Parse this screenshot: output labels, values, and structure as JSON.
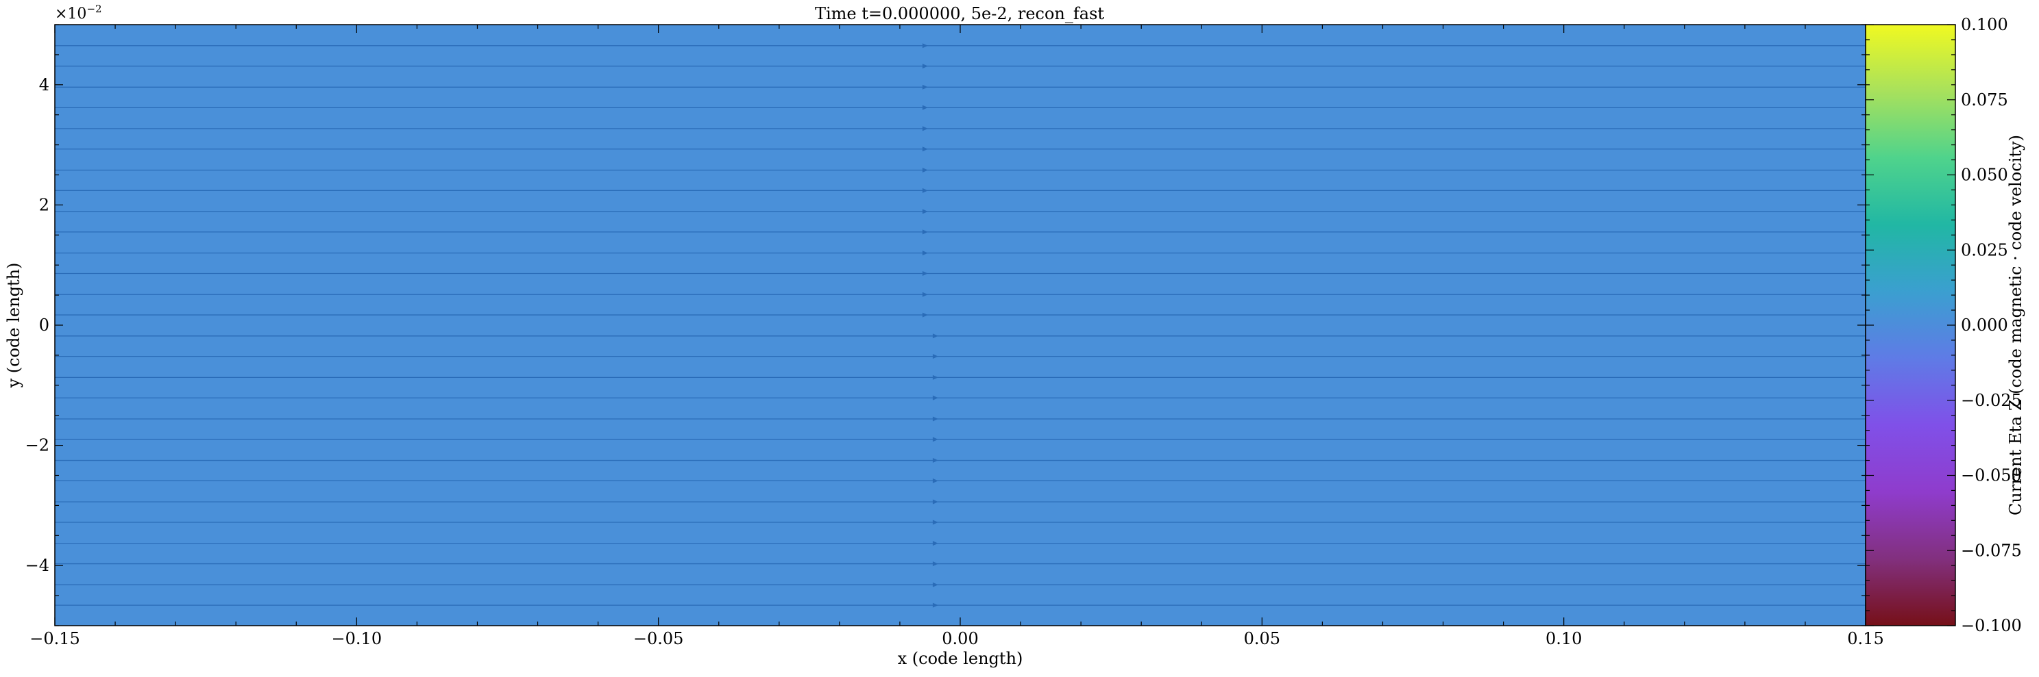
{
  "chart_data": {
    "type": "heatmap",
    "title": "Time t=0.000000, 5e-2, recon_fast",
    "xlabel": "x  (code length)",
    "ylabel": "y  (code length)",
    "xlim": [
      -0.15,
      0.15
    ],
    "ylim": [
      -0.05,
      0.05
    ],
    "y_offset_label": "×10",
    "y_offset_exponent": "−2",
    "x_ticks": [
      {
        "value": -0.15,
        "label": "−0.15"
      },
      {
        "value": -0.1,
        "label": "−0.10"
      },
      {
        "value": -0.05,
        "label": "−0.05"
      },
      {
        "value": 0.0,
        "label": "0.00"
      },
      {
        "value": 0.05,
        "label": "0.05"
      },
      {
        "value": 0.1,
        "label": "0.10"
      },
      {
        "value": 0.15,
        "label": "0.15"
      }
    ],
    "y_ticks": [
      {
        "value": -0.04,
        "label": "−4"
      },
      {
        "value": -0.02,
        "label": "−2"
      },
      {
        "value": 0.0,
        "label": "0"
      },
      {
        "value": 0.02,
        "label": "2"
      },
      {
        "value": 0.04,
        "label": "4"
      }
    ],
    "field_value": 0.0,
    "field_color": "#4a90d9",
    "colorbar": {
      "label": "Current Eta Z  (code magnetic · code velocity)",
      "range": [
        -0.1,
        0.1
      ],
      "ticks": [
        {
          "value": 0.1,
          "label": "0.100"
        },
        {
          "value": 0.075,
          "label": "0.075"
        },
        {
          "value": 0.05,
          "label": "0.050"
        },
        {
          "value": 0.025,
          "label": "0.025"
        },
        {
          "value": 0.0,
          "label": "0.000"
        },
        {
          "value": -0.025,
          "label": "−0.025"
        },
        {
          "value": -0.05,
          "label": "−0.050"
        },
        {
          "value": -0.075,
          "label": "−0.075"
        },
        {
          "value": -0.1,
          "label": "−0.100"
        }
      ],
      "stops": [
        "#f0f921",
        "#a8e15c",
        "#4fd38c",
        "#21b7a4",
        "#3b9fd0",
        "#5f7be6",
        "#8050e8",
        "#8f3ccc",
        "#82307e",
        "#761018"
      ]
    },
    "field_lines": {
      "color": "#2a6cb8",
      "y_values": [
        -0.0466,
        -0.0432,
        -0.0397,
        -0.0363,
        -0.0328,
        -0.0294,
        -0.0259,
        -0.0225,
        -0.019,
        -0.0156,
        -0.0121,
        -0.0087,
        -0.0052,
        -0.0018,
        0.0017,
        0.0051,
        0.0086,
        0.012,
        0.0155,
        0.0189,
        0.0224,
        0.0258,
        0.0293,
        0.0327,
        0.0362,
        0.0396,
        0.0431,
        0.0465
      ],
      "arrow_x_upper": -0.0058,
      "arrow_x_lower": -0.0041
    }
  }
}
